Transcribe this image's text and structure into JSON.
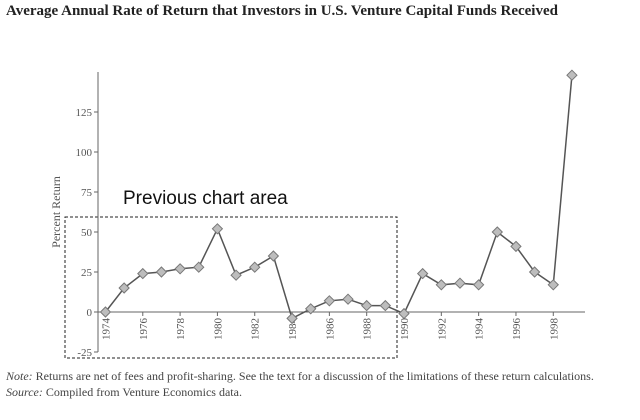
{
  "chart_data": {
    "type": "line",
    "title": "Average Annual Rate of Return that Investors in U.S. Venture Capital Funds Received",
    "y_label": "Percent Return",
    "annotation": "Previous chart area",
    "x": [
      1974,
      1975,
      1976,
      1977,
      1978,
      1979,
      1980,
      1981,
      1982,
      1983,
      1984,
      1985,
      1986,
      1987,
      1988,
      1989,
      1990,
      1991,
      1992,
      1993,
      1994,
      1995,
      1996,
      1997,
      1998,
      1999
    ],
    "series": [
      {
        "name": "Average annual return",
        "color": "#555555",
        "marker_color": "#bdbdbd",
        "values": [
          0,
          15,
          24,
          25,
          27,
          28,
          52,
          23,
          28,
          35,
          -4,
          2,
          7,
          8,
          4,
          4,
          -1,
          24,
          17,
          18,
          17,
          50,
          41,
          25,
          17,
          148
        ]
      }
    ],
    "xlim": [
      1973.6,
      1999.7
    ],
    "xticks": [
      1974,
      1976,
      1978,
      1980,
      1982,
      1984,
      1986,
      1988,
      1990,
      1992,
      1994,
      1996,
      1998
    ],
    "ylim": [
      -25,
      150
    ],
    "yticks": [
      -25,
      0,
      25,
      50,
      75,
      100,
      125
    ],
    "grid": false,
    "note_label": "Note:",
    "note": "Returns are net of fees and profit-sharing. See the text for a discussion of the limitations of these return calculations.",
    "source_label": "Source:",
    "source": "Compiled from Venture Economics data."
  }
}
